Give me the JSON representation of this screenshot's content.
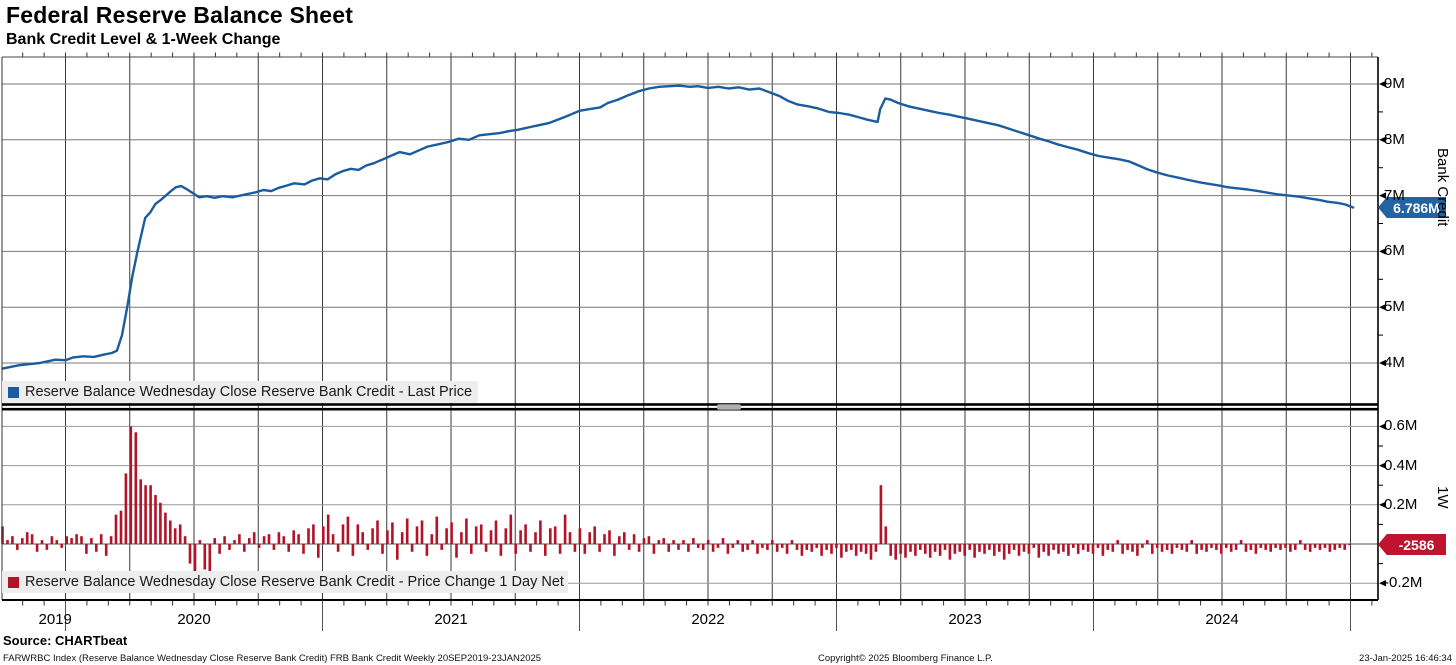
{
  "header": {
    "title": "Federal Reserve Balance Sheet",
    "subtitle": "Bank Credit Level & 1-Week Change"
  },
  "top_panel": {
    "legend_label": "Reserve Balance Wednesday Close Reserve Bank Credit - Last Price",
    "axis_title": "Bank Credit",
    "last_price_tag": "6.786M",
    "yticks": [
      {
        "v": 9,
        "label": "9M"
      },
      {
        "v": 8,
        "label": "8M"
      },
      {
        "v": 7,
        "label": "7M"
      },
      {
        "v": 6,
        "label": "6M"
      },
      {
        "v": 5,
        "label": "5M"
      },
      {
        "v": 4,
        "label": "4M"
      }
    ]
  },
  "bottom_panel": {
    "legend_label": "Reserve Balance Wednesday Close Reserve Bank Credit - Price Change 1 Day Net",
    "axis_title": "1W",
    "last_change_tag": "-2586",
    "yticks": [
      {
        "v": 0.6,
        "label": "0.6M"
      },
      {
        "v": 0.4,
        "label": "0.4M"
      },
      {
        "v": 0.2,
        "label": "0.2M"
      },
      {
        "v": -0.2,
        "label": "-0.2M"
      }
    ]
  },
  "x_axis": {
    "years": [
      {
        "label": "2019",
        "center": 2019.96
      },
      {
        "label": "2020",
        "center": 2020.5
      },
      {
        "label": "2021",
        "center": 2021.5
      },
      {
        "label": "2022",
        "center": 2022.5
      },
      {
        "label": "2023",
        "center": 2023.5
      },
      {
        "label": "2024",
        "center": 2024.5
      }
    ],
    "year_boundaries": [
      2020,
      2021,
      2022,
      2023,
      2024,
      2025
    ]
  },
  "footer": {
    "source": "Source: CHARTbeat",
    "ticker_line": "FARWRBC Index (Reserve Balance Wednesday Close Reserve Bank Credit) FRB Bank Credit  Weekly 20SEP2019-23JAN2025",
    "copyright": "Copyright© 2025 Bloomberg Finance L.P.",
    "timestamp": "23-Jan-2025 16:46:34"
  },
  "colors": {
    "line": "#1b5c9e",
    "bar": "#b31227",
    "tag_blue": "#2163a4",
    "tag_red": "#c0132e",
    "grid_h_top": "#787878",
    "grid_h_bot": "#999999",
    "grid_v": "#3a3a3a",
    "axis": "#000000",
    "zero_line": "#555555",
    "legend_bg": "#ededed",
    "divider": "#000000",
    "divider_handle": "#b0b0b0"
  },
  "chart_data": [
    {
      "type": "line",
      "name": "Reserve Balance Wednesday Close Reserve Bank Credit - Last Price",
      "units": "M (USD millions x 1e6)",
      "x_unit": "decimal_year",
      "xlim": [
        2019.74,
        2025.06
      ],
      "ylim": [
        3.27,
        9.48
      ],
      "yticks": [
        4,
        5,
        6,
        7,
        8,
        9
      ],
      "last_value": 6.786,
      "points": [
        [
          2019.755,
          3.9
        ],
        [
          2019.82,
          3.96
        ],
        [
          2019.9,
          4.0
        ],
        [
          2019.96,
          4.06
        ],
        [
          2020.0,
          4.05
        ],
        [
          2020.03,
          4.1
        ],
        [
          2020.07,
          4.12
        ],
        [
          2020.11,
          4.11
        ],
        [
          2020.15,
          4.15
        ],
        [
          2020.18,
          4.18
        ],
        [
          2020.2,
          4.22
        ],
        [
          2020.22,
          4.5
        ],
        [
          2020.24,
          5.0
        ],
        [
          2020.26,
          5.55
        ],
        [
          2020.28,
          6.0
        ],
        [
          2020.3,
          6.4
        ],
        [
          2020.31,
          6.6
        ],
        [
          2020.33,
          6.7
        ],
        [
          2020.35,
          6.85
        ],
        [
          2020.37,
          6.92
        ],
        [
          2020.39,
          7.0
        ],
        [
          2020.41,
          7.08
        ],
        [
          2020.43,
          7.15
        ],
        [
          2020.45,
          7.17
        ],
        [
          2020.47,
          7.12
        ],
        [
          2020.5,
          7.03
        ],
        [
          2020.52,
          6.97
        ],
        [
          2020.55,
          6.99
        ],
        [
          2020.58,
          6.96
        ],
        [
          2020.61,
          6.99
        ],
        [
          2020.65,
          6.97
        ],
        [
          2020.68,
          7.0
        ],
        [
          2020.71,
          7.03
        ],
        [
          2020.74,
          7.06
        ],
        [
          2020.77,
          7.1
        ],
        [
          2020.8,
          7.08
        ],
        [
          2020.83,
          7.14
        ],
        [
          2020.86,
          7.18
        ],
        [
          2020.89,
          7.22
        ],
        [
          2020.93,
          7.2
        ],
        [
          2020.96,
          7.27
        ],
        [
          2020.99,
          7.31
        ],
        [
          2021.02,
          7.29
        ],
        [
          2021.05,
          7.38
        ],
        [
          2021.08,
          7.44
        ],
        [
          2021.11,
          7.48
        ],
        [
          2021.14,
          7.46
        ],
        [
          2021.17,
          7.54
        ],
        [
          2021.2,
          7.58
        ],
        [
          2021.24,
          7.66
        ],
        [
          2021.27,
          7.72
        ],
        [
          2021.3,
          7.78
        ],
        [
          2021.34,
          7.74
        ],
        [
          2021.38,
          7.82
        ],
        [
          2021.41,
          7.88
        ],
        [
          2021.45,
          7.92
        ],
        [
          2021.49,
          7.96
        ],
        [
          2021.53,
          8.02
        ],
        [
          2021.57,
          8.0
        ],
        [
          2021.61,
          8.08
        ],
        [
          2021.65,
          8.1
        ],
        [
          2021.69,
          8.12
        ],
        [
          2021.73,
          8.16
        ],
        [
          2021.76,
          8.18
        ],
        [
          2021.8,
          8.22
        ],
        [
          2021.84,
          8.26
        ],
        [
          2021.88,
          8.3
        ],
        [
          2021.92,
          8.37
        ],
        [
          2021.96,
          8.44
        ],
        [
          2022.0,
          8.52
        ],
        [
          2022.04,
          8.55
        ],
        [
          2022.08,
          8.58
        ],
        [
          2022.11,
          8.66
        ],
        [
          2022.15,
          8.72
        ],
        [
          2022.19,
          8.8
        ],
        [
          2022.23,
          8.87
        ],
        [
          2022.27,
          8.92
        ],
        [
          2022.31,
          8.95
        ],
        [
          2022.35,
          8.96
        ],
        [
          2022.39,
          8.97
        ],
        [
          2022.43,
          8.95
        ],
        [
          2022.46,
          8.96
        ],
        [
          2022.5,
          8.93
        ],
        [
          2022.54,
          8.95
        ],
        [
          2022.58,
          8.92
        ],
        [
          2022.62,
          8.94
        ],
        [
          2022.66,
          8.9
        ],
        [
          2022.7,
          8.92
        ],
        [
          2022.74,
          8.85
        ],
        [
          2022.78,
          8.78
        ],
        [
          2022.81,
          8.7
        ],
        [
          2022.85,
          8.63
        ],
        [
          2022.89,
          8.6
        ],
        [
          2022.93,
          8.56
        ],
        [
          2022.97,
          8.5
        ],
        [
          2023.01,
          8.48
        ],
        [
          2023.05,
          8.45
        ],
        [
          2023.09,
          8.4
        ],
        [
          2023.12,
          8.36
        ],
        [
          2023.16,
          8.32
        ],
        [
          2023.17,
          8.55
        ],
        [
          2023.19,
          8.74
        ],
        [
          2023.21,
          8.72
        ],
        [
          2023.24,
          8.66
        ],
        [
          2023.28,
          8.6
        ],
        [
          2023.32,
          8.56
        ],
        [
          2023.36,
          8.52
        ],
        [
          2023.4,
          8.48
        ],
        [
          2023.44,
          8.45
        ],
        [
          2023.47,
          8.42
        ],
        [
          2023.51,
          8.38
        ],
        [
          2023.55,
          8.34
        ],
        [
          2023.59,
          8.3
        ],
        [
          2023.63,
          8.26
        ],
        [
          2023.67,
          8.2
        ],
        [
          2023.71,
          8.14
        ],
        [
          2023.75,
          8.08
        ],
        [
          2023.79,
          8.02
        ],
        [
          2023.82,
          7.98
        ],
        [
          2023.86,
          7.92
        ],
        [
          2023.9,
          7.87
        ],
        [
          2023.94,
          7.82
        ],
        [
          2023.98,
          7.76
        ],
        [
          2024.02,
          7.71
        ],
        [
          2024.06,
          7.68
        ],
        [
          2024.1,
          7.65
        ],
        [
          2024.14,
          7.61
        ],
        [
          2024.17,
          7.55
        ],
        [
          2024.21,
          7.47
        ],
        [
          2024.25,
          7.41
        ],
        [
          2024.29,
          7.36
        ],
        [
          2024.33,
          7.32
        ],
        [
          2024.37,
          7.28
        ],
        [
          2024.41,
          7.24
        ],
        [
          2024.45,
          7.21
        ],
        [
          2024.49,
          7.18
        ],
        [
          2024.52,
          7.15
        ],
        [
          2024.56,
          7.13
        ],
        [
          2024.6,
          7.11
        ],
        [
          2024.64,
          7.08
        ],
        [
          2024.68,
          7.05
        ],
        [
          2024.72,
          7.02
        ],
        [
          2024.76,
          7.0
        ],
        [
          2024.8,
          6.98
        ],
        [
          2024.84,
          6.95
        ],
        [
          2024.88,
          6.92
        ],
        [
          2024.91,
          6.89
        ],
        [
          2024.95,
          6.87
        ],
        [
          2024.98,
          6.84
        ],
        [
          2025.01,
          6.786
        ]
      ]
    },
    {
      "type": "bar",
      "name": "Reserve Balance Wednesday Close Reserve Bank Credit - Price Change 1 Day Net",
      "units": "M (USD millions x 1e6)",
      "x_unit": "decimal_year",
      "x_start": 2019.755,
      "x_step": 0.0192,
      "ylim": [
        -0.29,
        0.69
      ],
      "yticks": [
        0.6,
        0.4,
        0.2,
        -0.2
      ],
      "last_value_raw": -2586,
      "values": [
        0.09,
        0.02,
        0.04,
        -0.03,
        0.03,
        0.06,
        0.05,
        -0.04,
        0.02,
        -0.03,
        0.04,
        0.02,
        -0.02,
        0.04,
        0.03,
        0.05,
        0.04,
        -0.05,
        0.03,
        -0.04,
        0.05,
        -0.06,
        0.04,
        0.15,
        0.17,
        0.36,
        0.6,
        0.57,
        0.33,
        0.3,
        0.3,
        0.25,
        0.21,
        0.16,
        0.12,
        0.08,
        0.1,
        0.04,
        -0.1,
        -0.15,
        0.02,
        -0.13,
        -0.16,
        0.03,
        -0.05,
        0.04,
        -0.03,
        0.02,
        0.05,
        -0.04,
        0.03,
        0.06,
        -0.02,
        0.04,
        0.05,
        -0.03,
        0.06,
        0.04,
        -0.04,
        0.07,
        0.05,
        -0.05,
        0.08,
        0.1,
        -0.07,
        0.09,
        0.15,
        0.05,
        -0.04,
        0.1,
        0.14,
        -0.06,
        0.1,
        0.06,
        -0.03,
        0.08,
        0.12,
        -0.05,
        0.07,
        0.11,
        -0.08,
        0.06,
        0.13,
        -0.04,
        0.09,
        0.12,
        -0.06,
        0.05,
        0.14,
        -0.03,
        0.08,
        0.11,
        -0.07,
        0.06,
        0.13,
        -0.05,
        0.09,
        0.1,
        -0.04,
        0.07,
        0.12,
        -0.06,
        0.08,
        0.15,
        -0.05,
        0.07,
        0.1,
        -0.04,
        0.06,
        0.12,
        -0.06,
        0.08,
        0.09,
        -0.05,
        0.15,
        0.06,
        -0.04,
        0.08,
        -0.05,
        0.06,
        0.09,
        -0.04,
        0.05,
        0.07,
        -0.06,
        0.04,
        0.06,
        -0.03,
        0.05,
        -0.04,
        0.03,
        0.04,
        -0.05,
        0.02,
        0.03,
        -0.04,
        0.02,
        -0.03,
        0.02,
        -0.04,
        0.03,
        -0.02,
        -0.03,
        0.02,
        -0.04,
        -0.02,
        0.03,
        -0.05,
        -0.02,
        0.02,
        -0.04,
        -0.03,
        0.02,
        -0.05,
        -0.02,
        -0.03,
        0.02,
        -0.04,
        -0.02,
        -0.05,
        0.02,
        -0.03,
        -0.06,
        -0.03,
        -0.04,
        -0.02,
        -0.06,
        -0.03,
        -0.05,
        -0.02,
        -0.07,
        -0.04,
        -0.03,
        -0.06,
        -0.04,
        -0.05,
        -0.08,
        -0.04,
        0.3,
        0.09,
        -0.06,
        -0.08,
        -0.05,
        -0.07,
        -0.04,
        -0.06,
        -0.03,
        -0.05,
        -0.07,
        -0.04,
        -0.06,
        -0.03,
        -0.08,
        -0.05,
        -0.04,
        -0.06,
        -0.03,
        -0.07,
        -0.04,
        -0.05,
        -0.03,
        -0.06,
        -0.04,
        -0.08,
        -0.05,
        -0.03,
        -0.06,
        -0.04,
        -0.05,
        -0.02,
        -0.07,
        -0.04,
        -0.06,
        -0.03,
        -0.05,
        -0.04,
        -0.06,
        -0.02,
        -0.05,
        -0.03,
        -0.04,
        -0.05,
        -0.02,
        -0.06,
        -0.03,
        -0.04,
        0.02,
        -0.05,
        -0.03,
        -0.04,
        -0.06,
        -0.02,
        0.02,
        -0.05,
        -0.02,
        -0.04,
        -0.03,
        -0.05,
        -0.02,
        -0.03,
        -0.04,
        0.02,
        -0.05,
        -0.03,
        -0.04,
        -0.02,
        -0.03,
        -0.05,
        -0.02,
        -0.04,
        -0.03,
        0.02,
        -0.04,
        -0.03,
        -0.05,
        -0.02,
        -0.03,
        -0.04,
        -0.02,
        -0.03,
        -0.02,
        -0.04,
        -0.03,
        0.02,
        -0.03,
        -0.04,
        -0.02,
        -0.03,
        -0.02,
        -0.04,
        -0.03,
        -0.02,
        -0.03,
        -0.003
      ]
    }
  ]
}
